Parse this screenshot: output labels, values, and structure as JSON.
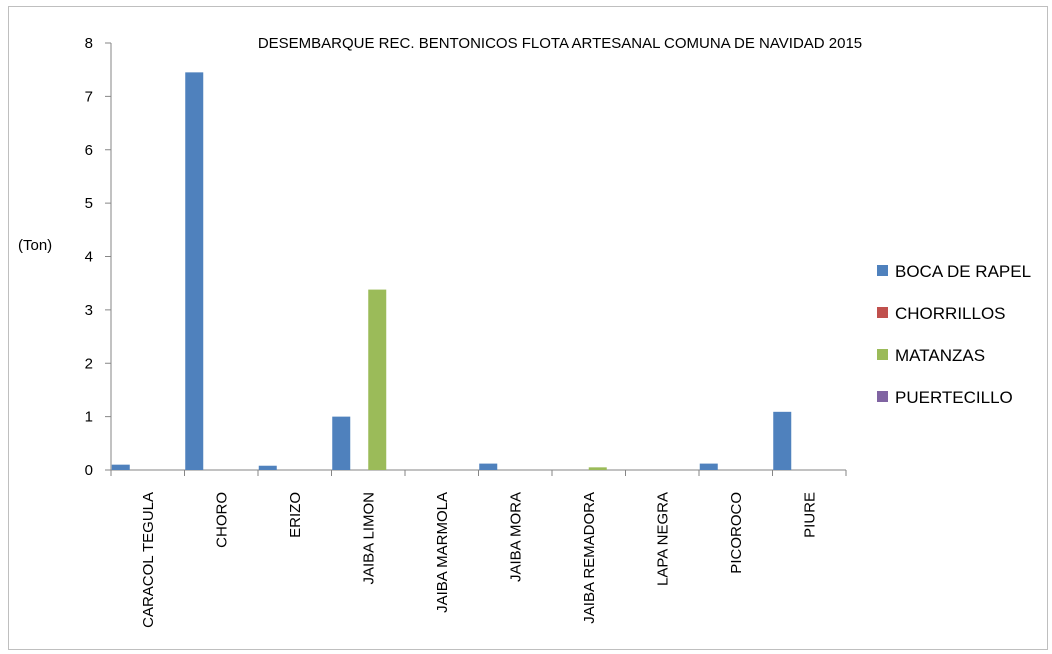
{
  "chart_data": {
    "type": "bar",
    "title": "DESEMBARQUE  REC. BENTONICOS FLOTA  ARTESANAL COMUNA DE NAVIDAD  2015",
    "xlabel": "",
    "ylabel": "(Ton)",
    "ylim": [
      0,
      8
    ],
    "yticks": [
      0,
      1,
      2,
      3,
      4,
      5,
      6,
      7,
      8
    ],
    "grid": false,
    "legend_position": "right",
    "categories": [
      "CARACOL TEGULA",
      "CHORO",
      "ERIZO",
      "JAIBA LIMON",
      "JAIBA MARMOLA",
      "JAIBA MORA",
      "JAIBA REMADORA",
      "LAPA NEGRA",
      "PICOROCO",
      "PIURE"
    ],
    "series": [
      {
        "name": "BOCA DE RAPEL",
        "color": "#4f81bd",
        "values": [
          0.1,
          7.45,
          0.08,
          1.0,
          0,
          0.12,
          0,
          0,
          0.12,
          1.09
        ]
      },
      {
        "name": "CHORRILLOS",
        "color": "#c0504d",
        "values": [
          0,
          0,
          0,
          0,
          0,
          0,
          0,
          0,
          0,
          0
        ]
      },
      {
        "name": "MATANZAS",
        "color": "#9bbb59",
        "values": [
          0,
          0,
          0,
          3.38,
          0,
          0,
          0.05,
          0,
          0,
          0
        ]
      },
      {
        "name": "PUERTECILLO",
        "color": "#8064a2",
        "values": [
          0,
          0,
          0,
          0,
          0,
          0,
          0,
          0,
          0,
          0
        ]
      }
    ]
  }
}
